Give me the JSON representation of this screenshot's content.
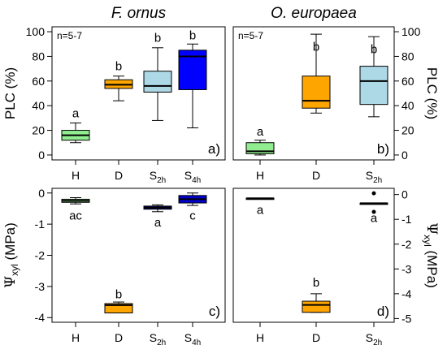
{
  "chart_data": [
    {
      "panel": "a)",
      "type": "box",
      "title": "F. ornus",
      "ylabel": "PLC (%)",
      "ylim": [
        -4,
        104
      ],
      "yticks": [
        0,
        20,
        40,
        60,
        80,
        100
      ],
      "ytick_side": "left",
      "categories": [
        "H",
        "D",
        "S2h",
        "S4h"
      ],
      "category_labels": [
        {
          "base": "H",
          "sub": ""
        },
        {
          "base": "D",
          "sub": ""
        },
        {
          "base": "S",
          "sub": "2h"
        },
        {
          "base": "S",
          "sub": "4h"
        }
      ],
      "annotation": "n=5-7",
      "boxes": [
        {
          "category": "H",
          "min": 10,
          "q1": 12,
          "median": 16,
          "q3": 20,
          "max": 26,
          "color": "#90ee90",
          "letter": "a",
          "letter_y": 34
        },
        {
          "category": "D",
          "min": 44,
          "q1": 54,
          "median": 57,
          "q3": 61,
          "max": 64,
          "color": "#ffa500",
          "letter": "b",
          "letter_y": 72
        },
        {
          "category": "S2h",
          "min": 28,
          "q1": 51,
          "median": 56,
          "q3": 68,
          "max": 87,
          "color": "#add8e6",
          "letter": "b",
          "letter_y": 95
        },
        {
          "category": "S4h",
          "min": 22,
          "q1": 53,
          "median": 80,
          "q3": 85,
          "max": 90,
          "color": "#0000ff",
          "letter": "b",
          "letter_y": 97
        }
      ]
    },
    {
      "panel": "b)",
      "type": "box",
      "title": "O. europaea",
      "ylabel": "PLC (%)",
      "ylim": [
        -4,
        104
      ],
      "yticks": [
        0,
        20,
        40,
        60,
        80,
        100
      ],
      "ytick_side": "right",
      "categories": [
        "H",
        "D",
        "S2h"
      ],
      "category_labels": [
        {
          "base": "H",
          "sub": ""
        },
        {
          "base": "D",
          "sub": ""
        },
        {
          "base": "S",
          "sub": "2h"
        }
      ],
      "annotation": "n=5-7",
      "boxes": [
        {
          "category": "H",
          "min": 0,
          "q1": 1,
          "median": 3,
          "q3": 10,
          "max": 12,
          "color": "#90ee90",
          "letter": "a",
          "letter_y": 19
        },
        {
          "category": "D",
          "min": 34,
          "q1": 38,
          "median": 44,
          "q3": 64,
          "max": 98,
          "color": "#ffa500",
          "letter": "b",
          "letter_y": 88
        },
        {
          "category": "S2h",
          "min": 31,
          "q1": 41,
          "median": 60,
          "q3": 72,
          "max": 96,
          "color": "#add8e6",
          "letter": "b",
          "letter_y": 86
        }
      ]
    },
    {
      "panel": "c)",
      "type": "box",
      "title": "",
      "ylabel_base": "Ψ",
      "ylabel_sub": "xyl",
      "ylabel_unit": " (MPa)",
      "ylim": [
        -4.15,
        0.15
      ],
      "yticks": [
        0,
        -1,
        -2,
        -3,
        -4
      ],
      "ytick_side": "left",
      "categories": [
        "H",
        "D",
        "S2h",
        "S4h"
      ],
      "category_labels": [
        {
          "base": "H",
          "sub": ""
        },
        {
          "base": "D",
          "sub": ""
        },
        {
          "base": "S",
          "sub": "2h"
        },
        {
          "base": "S",
          "sub": "4h"
        }
      ],
      "boxes": [
        {
          "category": "H",
          "min": -0.35,
          "q1": -0.3,
          "median": -0.25,
          "q3": -0.2,
          "max": -0.15,
          "color": "#90ee90",
          "letter": "ac",
          "letter_y": -0.72
        },
        {
          "category": "D",
          "min": -3.85,
          "q1": -3.85,
          "median": -3.6,
          "q3": -3.55,
          "max": -3.5,
          "color": "#ffa500",
          "letter": "b",
          "letter_y": -3.25
        },
        {
          "category": "S2h",
          "min": -0.6,
          "q1": -0.52,
          "median": -0.47,
          "q3": -0.42,
          "max": -0.38,
          "color": "#00008b",
          "letter": "a",
          "letter_y": -0.95
        },
        {
          "category": "S4h",
          "min": -0.4,
          "q1": -0.32,
          "median": -0.2,
          "q3": -0.08,
          "max": 0.0,
          "color": "#0000cd",
          "letter": "c",
          "letter_y": -0.72
        }
      ]
    },
    {
      "panel": "d)",
      "type": "box",
      "title": "",
      "ylabel_base": "Ψ",
      "ylabel_sub": "xyl",
      "ylabel_unit": " (MPa)",
      "ylim": [
        -5.15,
        0.25
      ],
      "yticks": [
        0,
        -1,
        -2,
        -3,
        -4,
        -5
      ],
      "ytick_side": "right",
      "categories": [
        "H",
        "D",
        "S2h"
      ],
      "category_labels": [
        {
          "base": "H",
          "sub": ""
        },
        {
          "base": "D",
          "sub": ""
        },
        {
          "base": "S",
          "sub": "2h"
        }
      ],
      "boxes": [
        {
          "category": "H",
          "min": -0.15,
          "q1": -0.15,
          "median": -0.15,
          "q3": -0.15,
          "max": -0.15,
          "color": "#000000",
          "letter": "a",
          "letter_y": -0.62
        },
        {
          "category": "D",
          "min": -4.75,
          "q1": -4.75,
          "median": -4.45,
          "q3": -4.3,
          "max": -4.0,
          "color": "#ffa500",
          "letter": "b",
          "letter_y": -3.55
        },
        {
          "category": "S2h",
          "min": -0.35,
          "q1": -0.35,
          "median": -0.35,
          "q3": -0.35,
          "max": -0.35,
          "color": "#000000",
          "letter": "a",
          "letter_y": -0.95,
          "outliers": [
            0.05,
            -0.7
          ]
        }
      ]
    }
  ]
}
